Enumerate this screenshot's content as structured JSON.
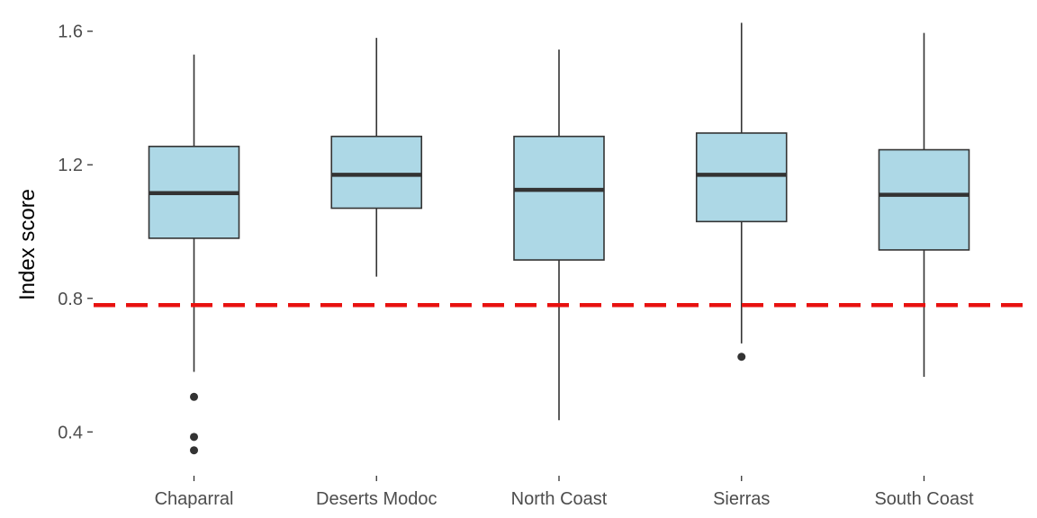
{
  "chart_data": {
    "type": "box",
    "xlabel": "",
    "ylabel": "Index score",
    "ylim": [
      0.285,
      1.645
    ],
    "yticks": [
      {
        "value": 0.4,
        "label": "0.4"
      },
      {
        "value": 0.8,
        "label": "0.8"
      },
      {
        "value": 1.2,
        "label": "1.2"
      },
      {
        "value": 1.6,
        "label": "1.6"
      }
    ],
    "grid": false,
    "categories": [
      "Chaparral",
      "Deserts Modoc",
      "North Coast",
      "Sierras",
      "South Coast"
    ],
    "boxes": [
      {
        "category": "Chaparral",
        "whisker_low": 0.58,
        "q1": 0.98,
        "median": 1.115,
        "q3": 1.255,
        "whisker_high": 1.53,
        "outliers": [
          0.505,
          0.385,
          0.345
        ]
      },
      {
        "category": "Deserts Modoc",
        "whisker_low": 0.865,
        "q1": 1.07,
        "median": 1.17,
        "q3": 1.285,
        "whisker_high": 1.58,
        "outliers": []
      },
      {
        "category": "North Coast",
        "whisker_low": 0.435,
        "q1": 0.915,
        "median": 1.125,
        "q3": 1.285,
        "whisker_high": 1.545,
        "outliers": []
      },
      {
        "category": "Sierras",
        "whisker_low": 0.665,
        "q1": 1.03,
        "median": 1.17,
        "q3": 1.295,
        "whisker_high": 1.625,
        "outliers": [
          0.625
        ]
      },
      {
        "category": "South Coast",
        "whisker_low": 0.565,
        "q1": 0.945,
        "median": 1.11,
        "q3": 1.245,
        "whisker_high": 1.595,
        "outliers": []
      }
    ],
    "reference_line": {
      "value": 0.78,
      "style": "dashed",
      "color": "#e8110f"
    },
    "colors": {
      "box_fill": "#add8e6",
      "box_stroke": "#333333",
      "median": "#333333",
      "outlier": "#333333",
      "axis_text": "#4d4d4d"
    }
  }
}
